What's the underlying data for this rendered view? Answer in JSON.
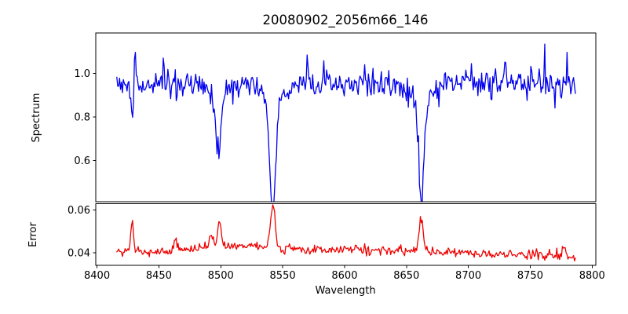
{
  "title": "20080902_2056m66_146",
  "chart_data": {
    "type": "line",
    "title": "20080902_2056m66_146",
    "xlabel": "Wavelength",
    "grid": false,
    "legend": null,
    "xlim": [
      8399,
      8803
    ],
    "xticks": {
      "values": [
        8400,
        8450,
        8500,
        8550,
        8600,
        8650,
        8700,
        8750,
        8800
      ],
      "labels": [
        "8400",
        "8450",
        "8500",
        "8550",
        "8600",
        "8650",
        "8700",
        "8750",
        "8800"
      ]
    },
    "data_x_range": [
      8416,
      8787
    ],
    "sample_step": 0.75,
    "subplots": [
      {
        "name": "spectrum",
        "ylabel": "Spectrum",
        "ylim": [
          0.411,
          1.185
        ],
        "yticks": {
          "values": [
            1.0,
            0.8,
            0.6
          ],
          "labels": [
            "1.0",
            "0.8",
            "0.6"
          ]
        },
        "line_color": "#0000EE",
        "continuum": [
          [
            8416,
            0.945
          ],
          [
            8450,
            0.952
          ],
          [
            8475,
            0.945
          ],
          [
            8520,
            0.958
          ],
          [
            8555,
            0.95
          ],
          [
            8590,
            0.953
          ],
          [
            8625,
            0.952
          ],
          [
            8665,
            0.955
          ],
          [
            8695,
            0.962
          ],
          [
            8720,
            0.965
          ],
          [
            8745,
            0.952
          ],
          [
            8787,
            0.944
          ]
        ],
        "absorption_lines": [
          {
            "center": 8428.5,
            "depth": 0.155,
            "sigma": 1.1,
            "observed_min": 0.78
          },
          {
            "center": 8498.0,
            "depth": 0.3,
            "sigma": 1.9,
            "observed_min": 0.62
          },
          {
            "center": 8542.0,
            "depth": 0.5,
            "sigma": 2.4,
            "observed_min": 0.43
          },
          {
            "center": 8662.0,
            "depth": 0.47,
            "sigma": 2.2,
            "observed_min": 0.47
          }
        ],
        "broad_components": [
          {
            "center": 8498,
            "depth": 0.05,
            "sigma": 7
          },
          {
            "center": 8542,
            "depth": 0.085,
            "sigma": 8
          },
          {
            "center": 8662,
            "depth": 0.075,
            "sigma": 8
          }
        ],
        "emission_spikes": [
          {
            "center": 8430.5,
            "height": 0.17,
            "sigma": 0.7
          },
          {
            "center": 8570.0,
            "height": 0.14,
            "sigma": 0.7
          },
          {
            "center": 8730.0,
            "height": 0.11,
            "sigma": 0.7
          }
        ],
        "noise_sigma": 0.03,
        "spike_prob": 0.012,
        "seed": 1357911
      },
      {
        "name": "error",
        "ylabel": "Error",
        "ylim": [
          0.0341,
          0.063
        ],
        "yticks": {
          "values": [
            0.06,
            0.04
          ],
          "labels": [
            "0.06",
            "0.04"
          ]
        },
        "line_color": "#EE0000",
        "baseline": [
          [
            8416,
            0.0404
          ],
          [
            8455,
            0.0402
          ],
          [
            8490,
            0.0425
          ],
          [
            8515,
            0.043
          ],
          [
            8548,
            0.042
          ],
          [
            8585,
            0.0414
          ],
          [
            8625,
            0.0412
          ],
          [
            8662,
            0.0406
          ],
          [
            8700,
            0.0397
          ],
          [
            8740,
            0.0391
          ],
          [
            8768,
            0.0386
          ],
          [
            8787,
            0.0366
          ]
        ],
        "peaks": [
          {
            "center": 8428.5,
            "height": 0.0135,
            "sigma": 1.2,
            "observed_max": 0.055
          },
          {
            "center": 8464.0,
            "height": 0.006,
            "sigma": 1.4,
            "observed_max": 0.049
          },
          {
            "center": 8492.0,
            "height": 0.005,
            "sigma": 1.8,
            "observed_max": 0.052
          },
          {
            "center": 8499.0,
            "height": 0.0125,
            "sigma": 1.4,
            "observed_max": 0.057
          },
          {
            "center": 8542.0,
            "height": 0.0185,
            "sigma": 2.0,
            "observed_max": 0.061
          },
          {
            "center": 8662.0,
            "height": 0.0152,
            "sigma": 1.7,
            "observed_max": 0.057
          },
          {
            "center": 8777.0,
            "height": 0.0045,
            "sigma": 1.6,
            "observed_max": 0.044
          }
        ],
        "noise_sigma": 0.0011,
        "spike_prob": 0.01,
        "seed": 246810
      }
    ]
  }
}
